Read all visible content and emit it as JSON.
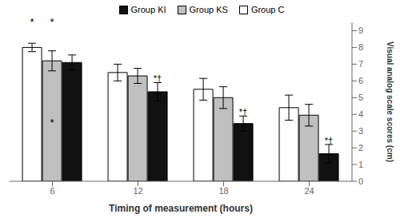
{
  "chart_data": {
    "type": "bar",
    "categories": [
      "6",
      "12",
      "18",
      "24"
    ],
    "series": [
      {
        "name": "Group C",
        "color": "white",
        "values": [
          8.0,
          6.5,
          5.5,
          4.4
        ],
        "errors": [
          0.25,
          0.5,
          0.65,
          0.75
        ]
      },
      {
        "name": "Group KS",
        "color": "#c0c0c0",
        "values": [
          7.2,
          6.3,
          5.0,
          3.95
        ],
        "errors": [
          0.6,
          0.45,
          0.65,
          0.65
        ]
      },
      {
        "name": "Group KI",
        "color": "#111111",
        "values": [
          7.1,
          5.35,
          3.45,
          1.65
        ],
        "errors": [
          0.45,
          0.55,
          0.45,
          0.55
        ]
      }
    ],
    "xlabel": "Timing of measurement (hours)",
    "ylabel": "Visual analog scale scores (cm)",
    "ylim": [
      0,
      9.5
    ],
    "yticks": [
      0,
      1,
      2,
      3,
      4,
      5,
      6,
      7,
      8,
      9
    ],
    "grid": false,
    "legend": "top",
    "annotations": [
      {
        "text": "*",
        "category": "6",
        "series": "Group C",
        "y": 9.3
      },
      {
        "text": "*",
        "category": "6",
        "series": "Group KS",
        "y": 9.3
      },
      {
        "text": "*",
        "category": "6",
        "series": "Group KS",
        "y": 3.3
      },
      {
        "text": "*†",
        "category": "12",
        "series": "Group KI",
        "y": 5.95
      },
      {
        "text": "*†",
        "category": "18",
        "series": "Group KI",
        "y": 3.95
      },
      {
        "text": "*†",
        "category": "24",
        "series": "Group KI",
        "y": 2.25
      }
    ]
  }
}
